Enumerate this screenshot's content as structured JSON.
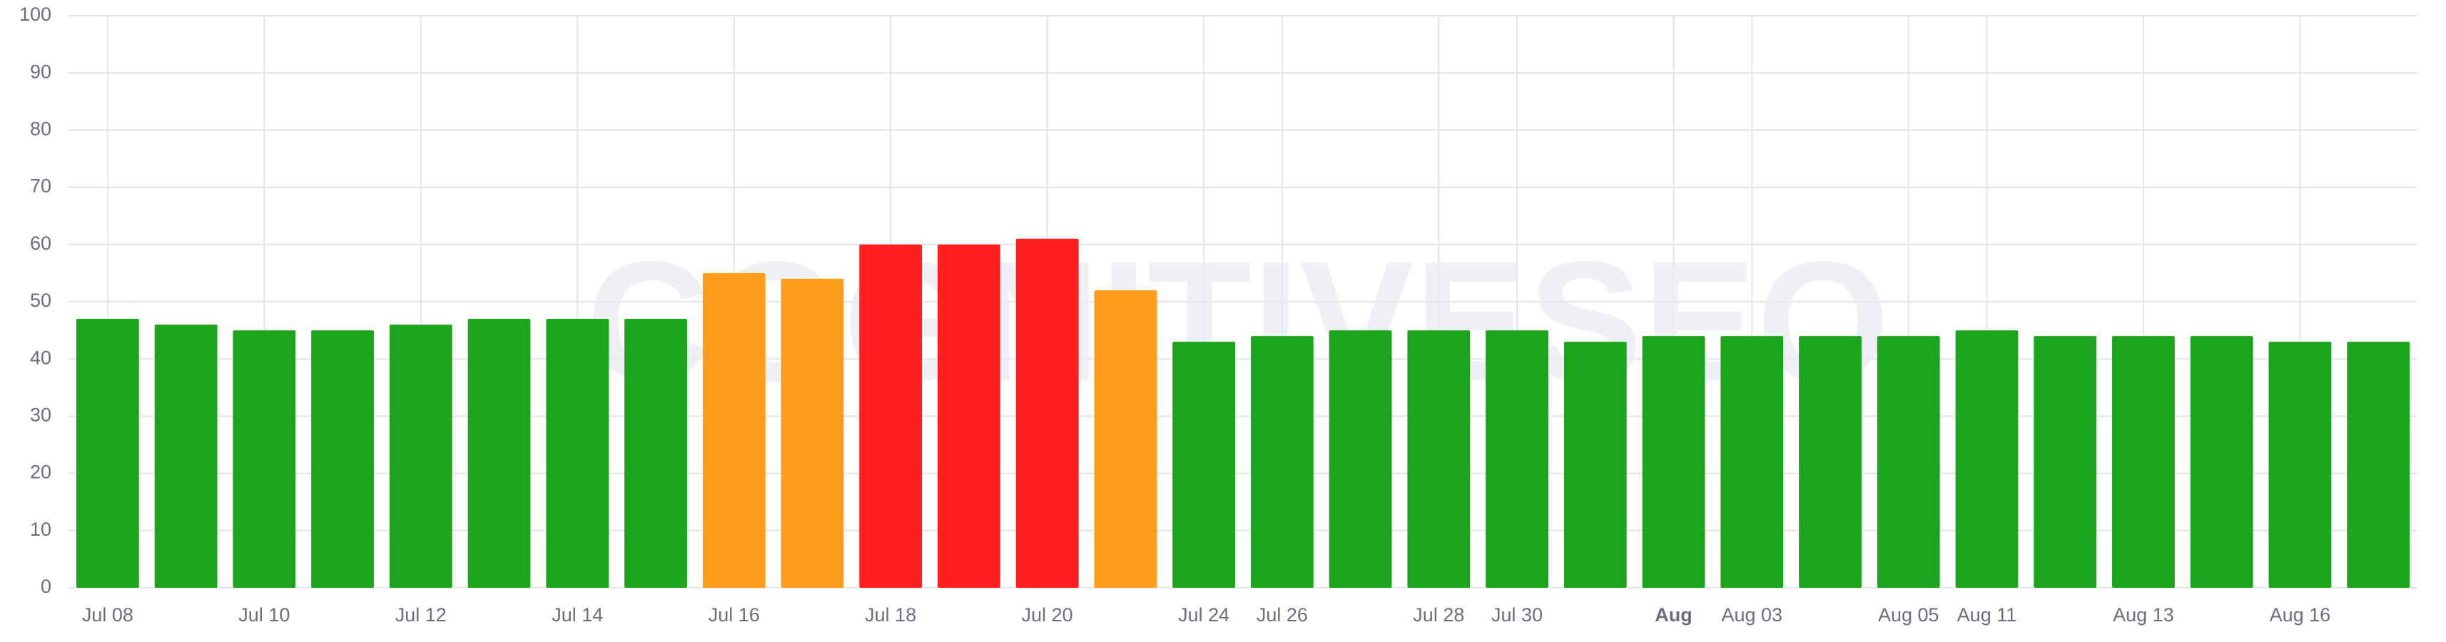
{
  "chart_data": {
    "type": "bar",
    "watermark": "COGNITIVESEO",
    "categories": [
      "Jul 08",
      null,
      "Jul 10",
      null,
      "Jul 12",
      null,
      "Jul 14",
      null,
      "Jul 16",
      null,
      "Jul 18",
      null,
      "Jul 20",
      null,
      "Jul 24",
      "Jul 26",
      null,
      "Jul 28",
      "Jul 30",
      null,
      "Aug",
      "Aug 03",
      null,
      "Aug 05",
      "Aug 11",
      null,
      "Aug 13",
      null,
      "Aug 16",
      null
    ],
    "values": [
      47,
      46,
      45,
      45,
      46,
      47,
      47,
      47,
      55,
      54,
      60,
      60,
      61,
      52,
      43,
      44,
      45,
      45,
      45,
      43,
      44,
      44,
      44,
      44,
      45,
      44,
      44,
      44,
      43,
      43
    ],
    "colors": [
      "#1ca51c",
      "#1ca51c",
      "#1ca51c",
      "#1ca51c",
      "#1ca51c",
      "#1ca51c",
      "#1ca51c",
      "#1ca51c",
      "#ff9c1a",
      "#ff9c1a",
      "#ff1f1f",
      "#ff1f1f",
      "#ff1f1f",
      "#ff9c1a",
      "#1ca51c",
      "#1ca51c",
      "#1ca51c",
      "#1ca51c",
      "#1ca51c",
      "#1ca51c",
      "#1ca51c",
      "#1ca51c",
      "#1ca51c",
      "#1ca51c",
      "#1ca51c",
      "#1ca51c",
      "#1ca51c",
      "#1ca51c",
      "#1ca51c",
      "#1ca51c"
    ],
    "ylim": [
      0,
      100
    ],
    "yticks": [
      0,
      10,
      20,
      30,
      40,
      50,
      60,
      70,
      80,
      90,
      100
    ],
    "grid": true
  }
}
